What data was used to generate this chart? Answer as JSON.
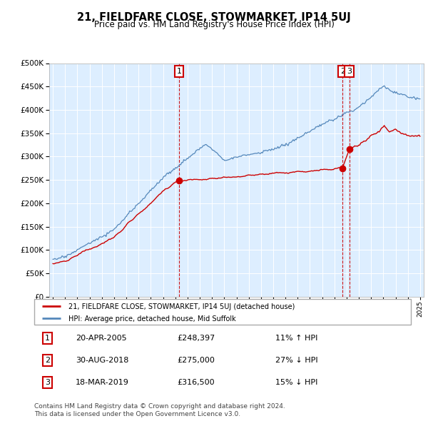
{
  "title": "21, FIELDFARE CLOSE, STOWMARKET, IP14 5UJ",
  "subtitle": "Price paid vs. HM Land Registry's House Price Index (HPI)",
  "red_label": "21, FIELDFARE CLOSE, STOWMARKET, IP14 5UJ (detached house)",
  "blue_label": "HPI: Average price, detached house, Mid Suffolk",
  "transactions": [
    {
      "num": 1,
      "date": "20-APR-2005",
      "price": 248397,
      "pct": "11% ↑ HPI",
      "year": 2005.3
    },
    {
      "num": 2,
      "date": "30-AUG-2018",
      "price": 275000,
      "pct": "27% ↓ HPI",
      "year": 2018.67
    },
    {
      "num": 3,
      "date": "18-MAR-2019",
      "price": 316500,
      "pct": "15% ↓ HPI",
      "year": 2019.21
    }
  ],
  "footer1": "Contains HM Land Registry data © Crown copyright and database right 2024.",
  "footer2": "This data is licensed under the Open Government Licence v3.0.",
  "ylim": [
    0,
    500000
  ],
  "yticks": [
    0,
    50000,
    100000,
    150000,
    200000,
    250000,
    300000,
    350000,
    400000,
    450000,
    500000
  ],
  "red_color": "#cc0000",
  "blue_color": "#5588bb",
  "plot_bg": "#ddeeff",
  "xmin": 1995,
  "xmax": 2025
}
